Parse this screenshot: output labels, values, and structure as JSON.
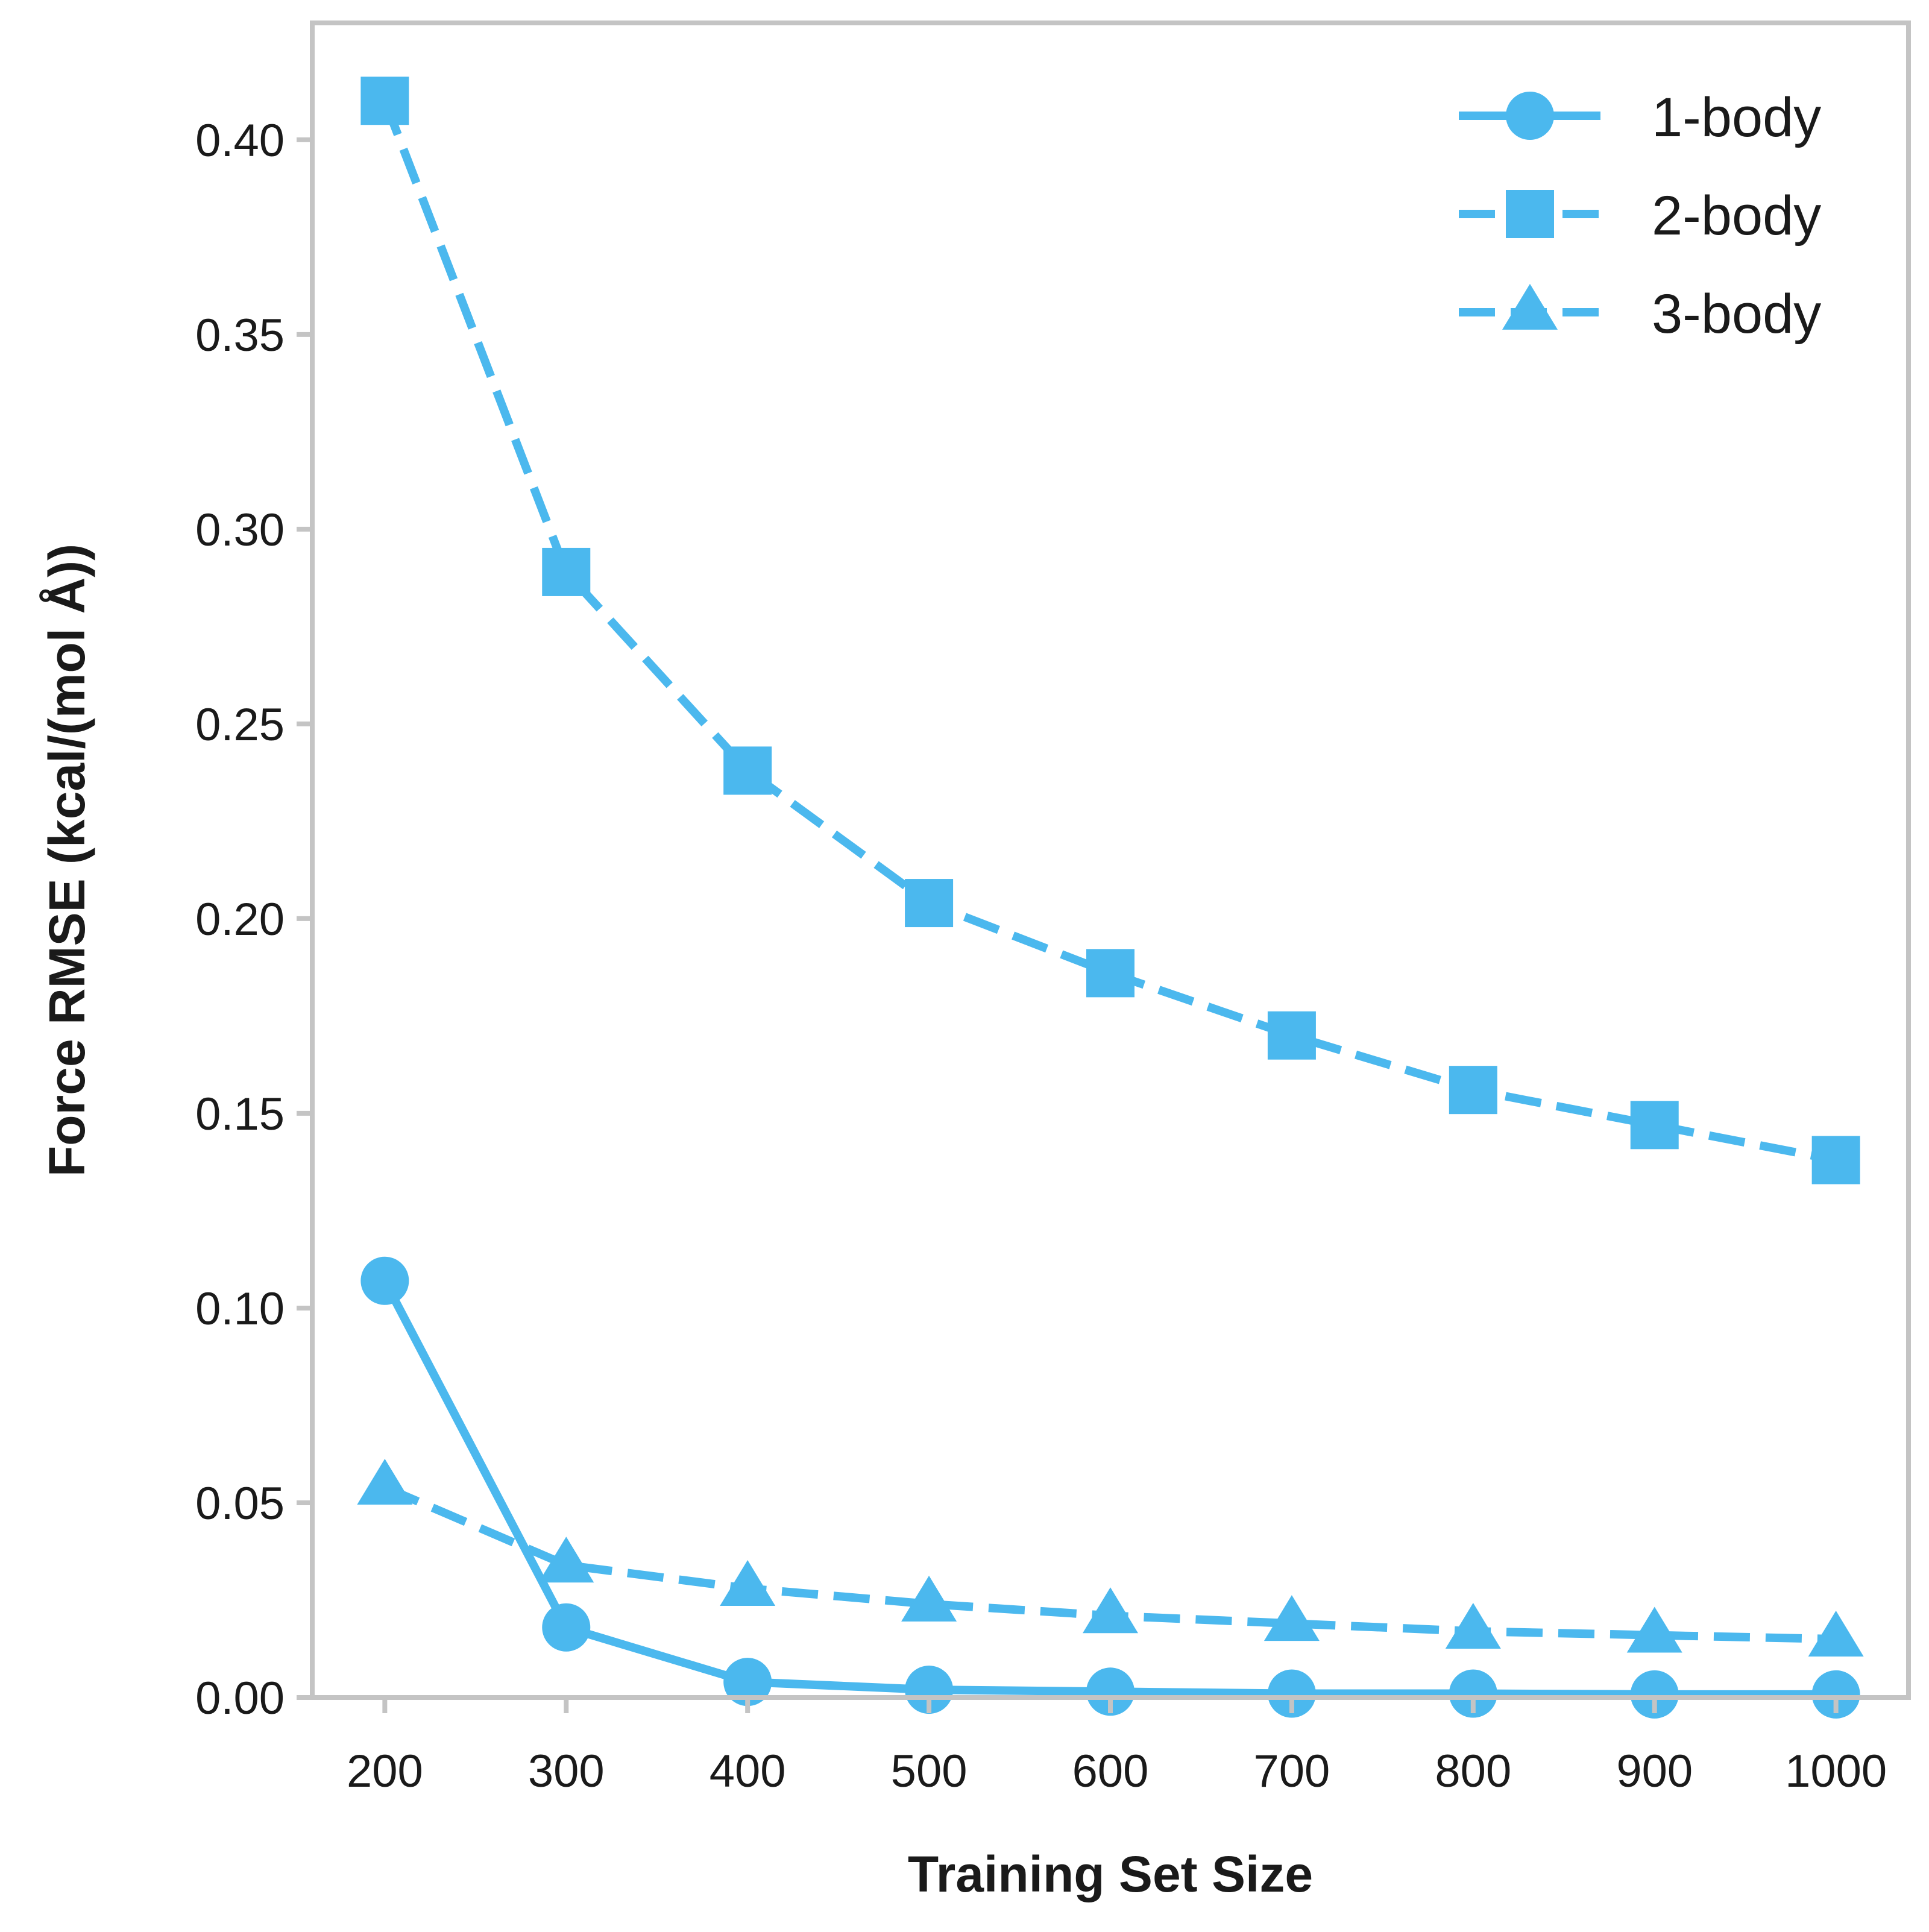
{
  "chart_data": {
    "type": "line",
    "title": "",
    "xlabel": "Training Set Size",
    "ylabel": "Force RMSE (kcal/(mol Å))",
    "x": [
      200,
      300,
      400,
      500,
      600,
      700,
      800,
      900,
      1000
    ],
    "xticks": [
      "200",
      "300",
      "400",
      "500",
      "600",
      "700",
      "800",
      "900",
      "1000"
    ],
    "yticks": [
      "0.00",
      "0.05",
      "0.10",
      "0.15",
      "0.20",
      "0.25",
      "0.30",
      "0.35",
      "0.40"
    ],
    "xlim": [
      160,
      1040
    ],
    "ylim": [
      0.0,
      0.43
    ],
    "grid": false,
    "legend_position": "top-right",
    "color": "#4bb8ee",
    "series": [
      {
        "name": "1-body",
        "marker": "circle",
        "line": "solid",
        "values": [
          0.107,
          0.018,
          0.004,
          0.002,
          0.0015,
          0.001,
          0.001,
          0.0008,
          0.0008
        ]
      },
      {
        "name": "2-body",
        "marker": "square",
        "line": "dashed",
        "values": [
          0.41,
          0.289,
          0.238,
          0.204,
          0.186,
          0.17,
          0.156,
          0.147,
          0.138
        ]
      },
      {
        "name": "3-body",
        "marker": "triangle",
        "line": "dashed",
        "values": [
          0.054,
          0.034,
          0.028,
          0.024,
          0.021,
          0.019,
          0.017,
          0.016,
          0.015
        ]
      }
    ]
  }
}
